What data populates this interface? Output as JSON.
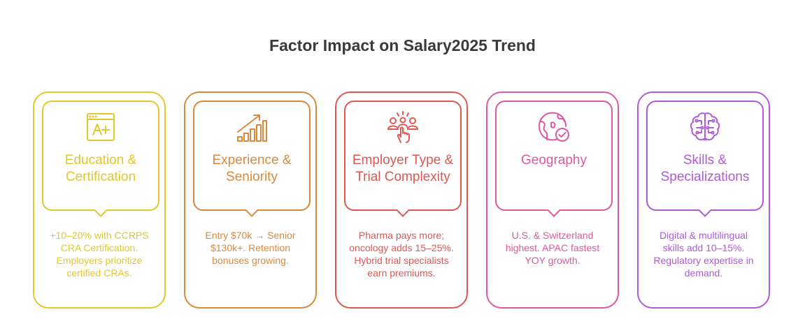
{
  "title": "Factor Impact on Salary2025 Trend",
  "cards": [
    {
      "heading": "Education & Certification",
      "description": "+10–20% with CCRPS CRA Certification. Employers prioritize certified CRAs.",
      "color": "#e2c82a",
      "icon": "certificate-grade-icon"
    },
    {
      "heading": "Experience & Seniority",
      "description": "Entry $70k → Senior $130k+. Retention bonuses growing.",
      "color": "#d9893c",
      "icon": "growth-chart-icon"
    },
    {
      "heading": "Employer Type & Trial Complexity",
      "description": "Pharma pays more; oncology adds 15–25%. Hybrid trial specialists earn premiums.",
      "color": "#de5752",
      "icon": "team-selection-icon"
    },
    {
      "heading": "Geography",
      "description": "U.S. & Switzerland highest. APAC fastest YOY growth.",
      "color": "#dd58a0",
      "icon": "globe-check-icon"
    },
    {
      "heading": "Skills & Specializations",
      "description": "Digital & multilingual skills add 10–15%. Regulatory expertise in demand.",
      "color": "#b05ad6",
      "icon": "brain-circuit-icon"
    }
  ]
}
